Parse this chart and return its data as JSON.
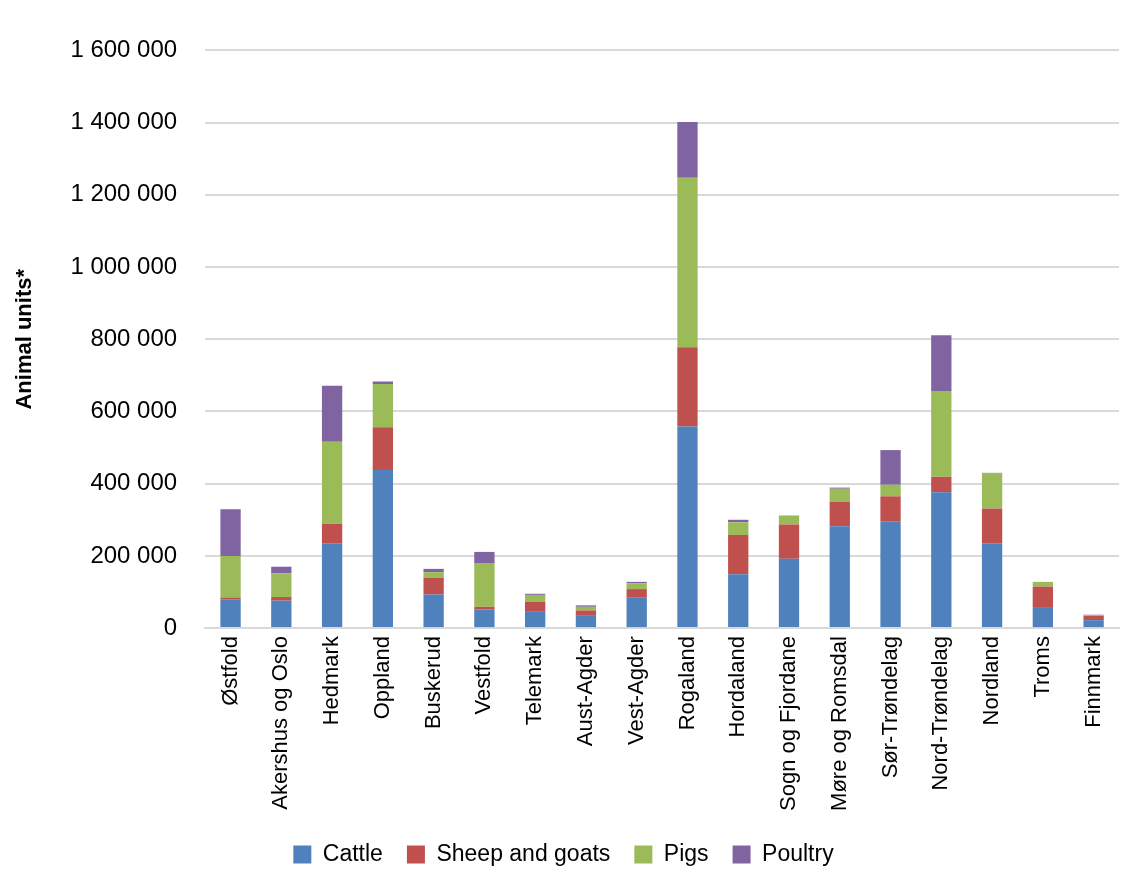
{
  "chart_data": {
    "type": "bar",
    "stacked": true,
    "ylabel": "Animal units*",
    "categories": [
      "Østfold",
      "Akershus og Oslo",
      "Hedmark",
      "Oppland",
      "Buskerud",
      "Vestfold",
      "Telemark",
      "Aust-Agder",
      "Vest-Agder",
      "Rogaland",
      "Hordaland",
      "Sogn og Fjordane",
      "Møre og Romsdal",
      "Sør-Trøndelag",
      "Nord-Trøndelag",
      "Nordland",
      "Troms",
      "Finnmark"
    ],
    "series": [
      {
        "name": "Cattle",
        "color": "#4f81bd",
        "values": [
          80000,
          76000,
          234000,
          438000,
          93000,
          52000,
          47000,
          34000,
          84000,
          558000,
          149000,
          192000,
          282000,
          295000,
          376000,
          235000,
          56000,
          22000
        ]
      },
      {
        "name": "Sheep and goats",
        "color": "#c0504d",
        "values": [
          5000,
          10000,
          55000,
          118000,
          47000,
          7000,
          26000,
          15000,
          24000,
          220000,
          109000,
          95000,
          68000,
          70000,
          43000,
          96000,
          59000,
          12000
        ]
      },
      {
        "name": "Pigs",
        "color": "#9bbb59",
        "values": [
          115000,
          66000,
          227000,
          120000,
          15000,
          121000,
          19000,
          10000,
          16000,
          469000,
          35000,
          25000,
          36000,
          32000,
          238000,
          97000,
          13000,
          2000
        ]
      },
      {
        "name": "Poultry",
        "color": "#8064a2",
        "values": [
          129000,
          18000,
          155000,
          7000,
          9000,
          31000,
          3000,
          4000,
          4000,
          155000,
          7000,
          0,
          3000,
          96000,
          154000,
          2000,
          null,
          1000
        ]
      }
    ],
    "ylim": [
      0,
      1600000
    ],
    "yticks": [
      {
        "value": 0,
        "label": "0"
      },
      {
        "value": 200000,
        "label": "200 000"
      },
      {
        "value": 400000,
        "label": "400 000"
      },
      {
        "value": 600000,
        "label": "600 000"
      },
      {
        "value": 800000,
        "label": "800 000"
      },
      {
        "value": 1000000,
        "label": "1 000 000"
      },
      {
        "value": 1200000,
        "label": "1 200 000"
      },
      {
        "value": 1400000,
        "label": "1 400 000"
      },
      {
        "value": 1600000,
        "label": "1 600 000"
      }
    ],
    "grid": "y",
    "legend": "bottom"
  }
}
